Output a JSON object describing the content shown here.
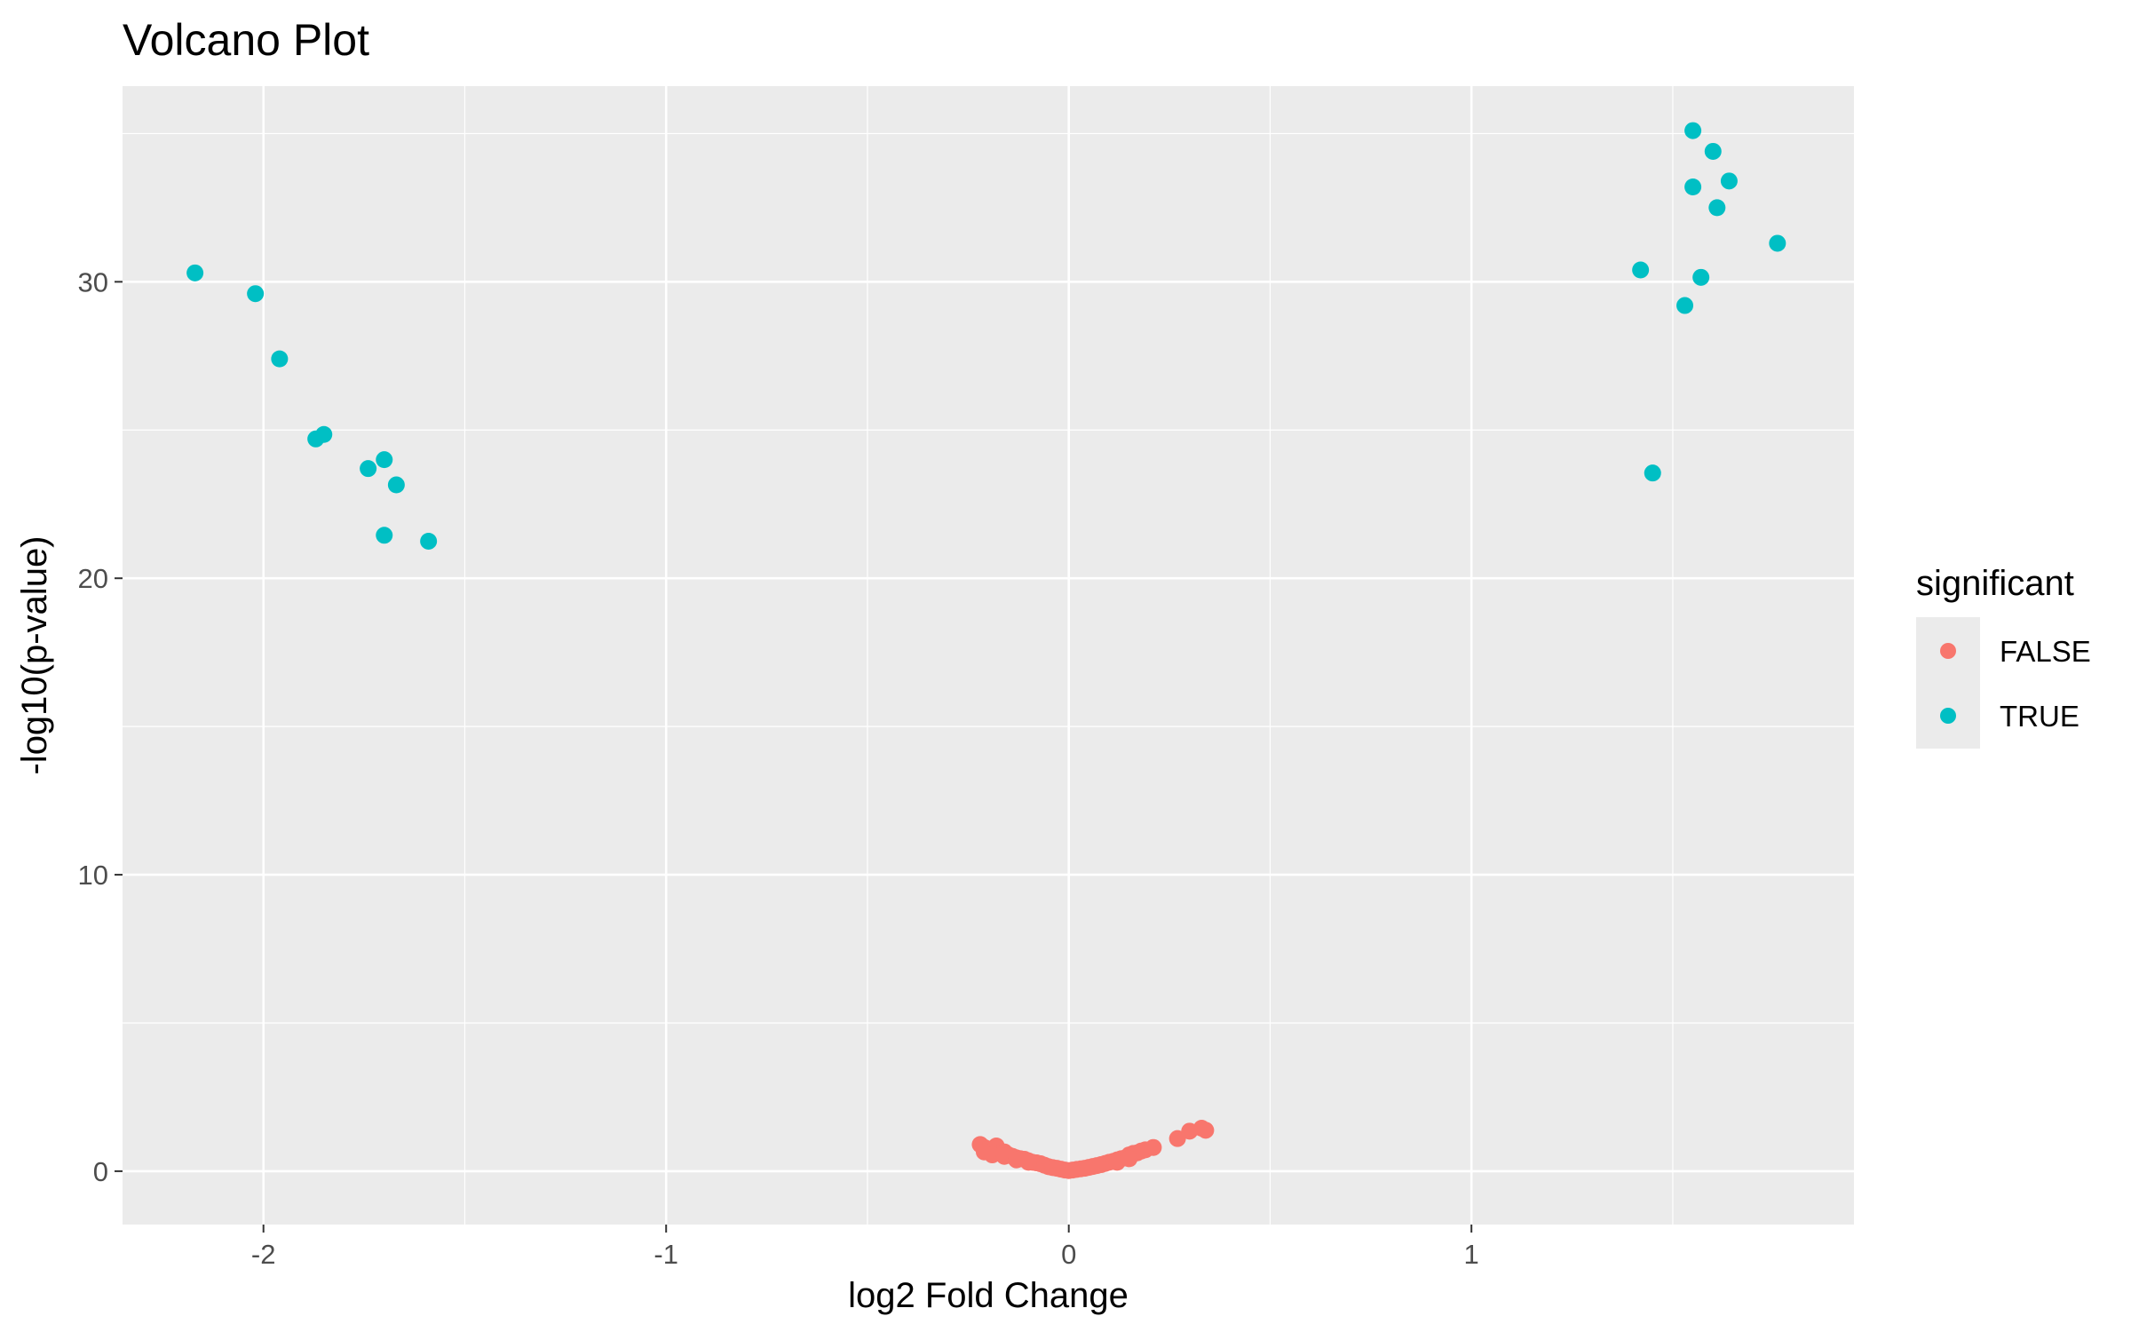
{
  "chart_data": {
    "type": "scatter",
    "title": "Volcano Plot",
    "xlabel": "log2 Fold Change",
    "ylabel": "-log10(p-value)",
    "xlim": [
      -2.35,
      1.95
    ],
    "ylim": [
      -1.8,
      36.6
    ],
    "x_ticks": [
      {
        "value": -2,
        "label": "-2"
      },
      {
        "value": -1,
        "label": "-1"
      },
      {
        "value": 0,
        "label": "0"
      },
      {
        "value": 1,
        "label": "1"
      }
    ],
    "y_ticks": [
      {
        "value": 0,
        "label": "0"
      },
      {
        "value": 10,
        "label": "10"
      },
      {
        "value": 20,
        "label": "20"
      },
      {
        "value": 30,
        "label": "30"
      }
    ],
    "grid": true,
    "legend": {
      "title": "significant",
      "position": "right",
      "entries": [
        {
          "label": "FALSE",
          "color": "#f8766d"
        },
        {
          "label": "TRUE",
          "color": "#00bfc4"
        }
      ]
    },
    "series": [
      {
        "name": "FALSE",
        "color": "#f8766d",
        "points": [
          [
            -0.22,
            0.9
          ],
          [
            -0.21,
            0.8
          ],
          [
            -0.2,
            0.75
          ],
          [
            -0.19,
            0.7
          ],
          [
            -0.18,
            0.85
          ],
          [
            -0.17,
            0.6
          ],
          [
            -0.16,
            0.65
          ],
          [
            -0.15,
            0.55
          ],
          [
            -0.14,
            0.5
          ],
          [
            -0.13,
            0.45
          ],
          [
            -0.12,
            0.42
          ],
          [
            -0.11,
            0.4
          ],
          [
            -0.1,
            0.35
          ],
          [
            -0.09,
            0.3
          ],
          [
            -0.08,
            0.28
          ],
          [
            -0.07,
            0.25
          ],
          [
            -0.06,
            0.2
          ],
          [
            -0.05,
            0.15
          ],
          [
            -0.04,
            0.12
          ],
          [
            -0.03,
            0.1
          ],
          [
            -0.02,
            0.07
          ],
          [
            -0.01,
            0.04
          ],
          [
            0.0,
            0.02
          ],
          [
            0.01,
            0.04
          ],
          [
            0.02,
            0.06
          ],
          [
            0.03,
            0.08
          ],
          [
            0.04,
            0.1
          ],
          [
            0.05,
            0.13
          ],
          [
            0.06,
            0.16
          ],
          [
            0.07,
            0.19
          ],
          [
            0.08,
            0.22
          ],
          [
            0.09,
            0.26
          ],
          [
            0.1,
            0.3
          ],
          [
            0.11,
            0.33
          ],
          [
            0.12,
            0.38
          ],
          [
            0.13,
            0.42
          ],
          [
            0.14,
            0.45
          ],
          [
            0.15,
            0.55
          ],
          [
            0.16,
            0.6
          ],
          [
            0.17,
            0.62
          ],
          [
            0.18,
            0.68
          ],
          [
            0.19,
            0.72
          ],
          [
            0.21,
            0.8
          ],
          [
            0.27,
            1.1
          ],
          [
            0.3,
            1.35
          ],
          [
            0.33,
            1.45
          ],
          [
            0.34,
            1.38
          ],
          [
            -0.21,
            0.65
          ],
          [
            -0.19,
            0.55
          ],
          [
            -0.16,
            0.5
          ],
          [
            -0.13,
            0.38
          ],
          [
            -0.1,
            0.3
          ],
          [
            0.12,
            0.3
          ],
          [
            0.15,
            0.42
          ]
        ]
      },
      {
        "name": "TRUE",
        "color": "#00bfc4",
        "points": [
          [
            -2.17,
            30.3
          ],
          [
            -2.02,
            29.6
          ],
          [
            -1.96,
            27.4
          ],
          [
            -1.87,
            24.7
          ],
          [
            -1.85,
            24.85
          ],
          [
            -1.74,
            23.7
          ],
          [
            -1.7,
            24.0
          ],
          [
            -1.67,
            23.15
          ],
          [
            -1.7,
            21.45
          ],
          [
            -1.59,
            21.25
          ],
          [
            1.55,
            35.1
          ],
          [
            1.6,
            34.4
          ],
          [
            1.55,
            33.2
          ],
          [
            1.64,
            33.4
          ],
          [
            1.61,
            32.5
          ],
          [
            1.76,
            31.3
          ],
          [
            1.42,
            30.4
          ],
          [
            1.57,
            30.15
          ],
          [
            1.53,
            29.2
          ],
          [
            1.45,
            23.55
          ]
        ]
      }
    ]
  }
}
